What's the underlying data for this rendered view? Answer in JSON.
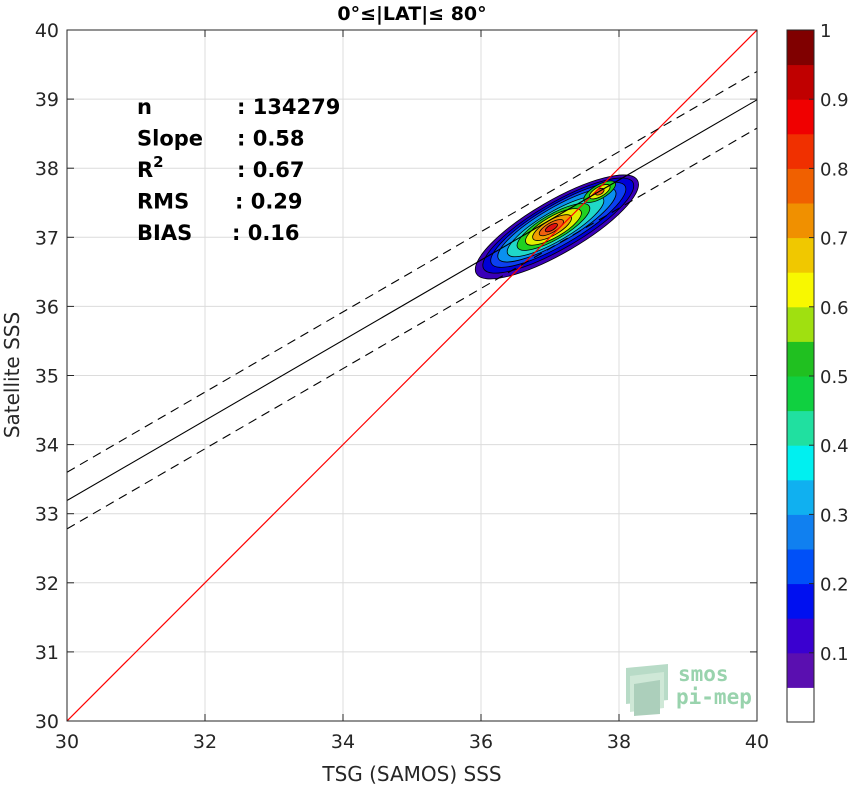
{
  "chart_data": {
    "type": "heatmap",
    "title": "0°≤|LAT|≤ 80°",
    "xlabel": "TSG (SAMOS) SSS",
    "ylabel": "Satellite SSS",
    "xlim": [
      30,
      40
    ],
    "ylim": [
      30,
      40
    ],
    "xticks": [
      "30",
      "32",
      "34",
      "36",
      "38",
      "40"
    ],
    "yticks": [
      "30",
      "31",
      "32",
      "33",
      "34",
      "35",
      "36",
      "37",
      "38",
      "39",
      "40"
    ],
    "grid": true,
    "stats": [
      {
        "label": "n",
        "value": ": 134279"
      },
      {
        "label": "Slope",
        "value": ": 0.58"
      },
      {
        "label": "R",
        "sup": "2",
        "value": ": 0.67"
      },
      {
        "label": "RMS",
        "value": ": 0.29"
      },
      {
        "label": "BIAS",
        "value": ": 0.16"
      }
    ],
    "lines": {
      "identity": {
        "from": [
          30,
          30
        ],
        "to": [
          40,
          40
        ],
        "color": "#ff0000"
      },
      "regression": {
        "slope": 0.58,
        "intercept": 15.79,
        "color": "#000000"
      },
      "confidence_offset": 0.41
    },
    "contour_levels": [
      {
        "level": 0.05,
        "color": "#3a00b8",
        "cx": 37.1,
        "cy": 37.15,
        "rx": 1.35,
        "ry": 0.38
      },
      {
        "level": 0.1,
        "color": "#0000d8",
        "cx": 37.12,
        "cy": 37.17,
        "rx": 1.25,
        "ry": 0.33
      },
      {
        "level": 0.2,
        "color": "#0c40f0",
        "cx": 37.12,
        "cy": 37.18,
        "rx": 1.12,
        "ry": 0.29
      },
      {
        "level": 0.3,
        "color": "#0a90f0",
        "cx": 37.1,
        "cy": 37.18,
        "rx": 0.98,
        "ry": 0.25
      },
      {
        "level": 0.4,
        "color": "#20d8c8",
        "cx": 37.08,
        "cy": 37.16,
        "rx": 0.8,
        "ry": 0.21
      },
      {
        "level": 0.5,
        "color": "#20d020",
        "cx": 37.05,
        "cy": 37.15,
        "rx": 0.6,
        "ry": 0.18
      },
      {
        "level": 0.6,
        "color": "#e0f000",
        "cx": 37.05,
        "cy": 37.15,
        "rx": 0.46,
        "ry": 0.15
      },
      {
        "level": 0.7,
        "color": "#f0a000",
        "cx": 37.03,
        "cy": 37.14,
        "rx": 0.32,
        "ry": 0.11
      },
      {
        "level": 0.8,
        "color": "#f06010",
        "cx": 37.02,
        "cy": 37.14,
        "rx": 0.2,
        "ry": 0.07
      },
      {
        "level": 0.9,
        "color": "#e01010",
        "cx": 37.02,
        "cy": 37.14,
        "rx": 0.1,
        "ry": 0.04
      }
    ],
    "secondary_peak": {
      "cx": 37.72,
      "cy": 37.66,
      "levels": [
        {
          "color": "#20d020",
          "rx": 0.26,
          "ry": 0.1
        },
        {
          "color": "#e0f000",
          "rx": 0.17,
          "ry": 0.07
        },
        {
          "color": "#f06010",
          "rx": 0.07,
          "ry": 0.04
        }
      ]
    },
    "colorbar": {
      "colors": [
        "#ffffff",
        "#5a0fb0",
        "#3a00d0",
        "#0010f0",
        "#0050f8",
        "#1080f0",
        "#10b0f0",
        "#00f0f0",
        "#20e0a0",
        "#10d040",
        "#20c020",
        "#a0e010",
        "#f8f800",
        "#f0c800",
        "#f09000",
        "#f06000",
        "#f03000",
        "#f00000",
        "#c00000",
        "#800000"
      ],
      "ticks": [
        "0.1",
        "0.2",
        "0.3",
        "0.4",
        "0.5",
        "0.6",
        "0.7",
        "0.8",
        "0.9",
        "1"
      ],
      "tick_values": [
        0.1,
        0.2,
        0.3,
        0.4,
        0.5,
        0.6,
        0.7,
        0.8,
        0.9,
        1.0
      ]
    },
    "watermark": {
      "line1": "smos",
      "line2": "pi-mep"
    }
  }
}
